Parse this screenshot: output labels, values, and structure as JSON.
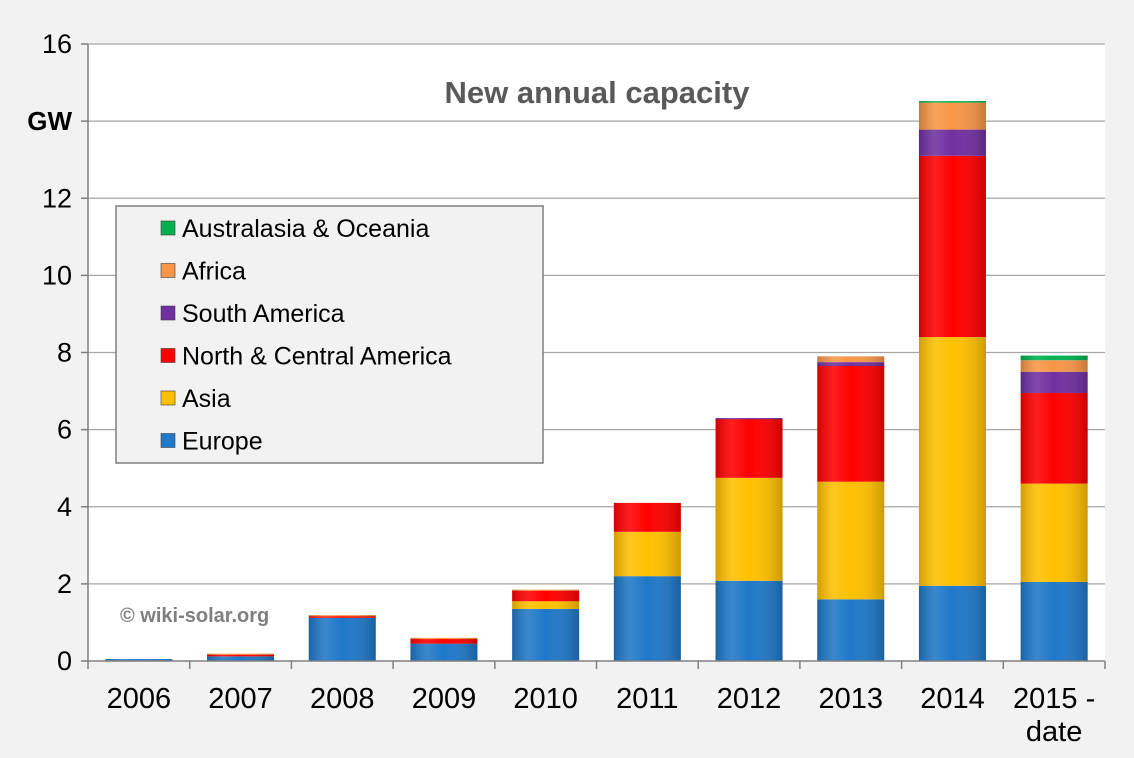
{
  "chart_data": {
    "type": "bar",
    "stacked": true,
    "title": "New annual capacity",
    "unit_label": "GW",
    "watermark": "© wiki-solar.org",
    "categories": [
      [
        "2006"
      ],
      [
        "2007"
      ],
      [
        "2008"
      ],
      [
        "2009"
      ],
      [
        "2010"
      ],
      [
        "2011"
      ],
      [
        "2012"
      ],
      [
        "2013"
      ],
      [
        "2014"
      ],
      [
        "2015 -",
        "date"
      ]
    ],
    "ylim": [
      0,
      16
    ],
    "yticks": [
      0,
      2,
      4,
      6,
      8,
      10,
      12,
      14,
      16
    ],
    "ytick_labels": [
      "0",
      "2",
      "4",
      "6",
      "8",
      "10",
      "12",
      "GW",
      "16"
    ],
    "grid": true,
    "legend_position": "left",
    "series": [
      {
        "name": "Europe",
        "color": "#1f78c8",
        "values": [
          0.05,
          0.12,
          1.12,
          0.45,
          1.35,
          2.2,
          2.08,
          1.6,
          1.95,
          2.05
        ]
      },
      {
        "name": "Asia",
        "color": "#ffc000",
        "values": [
          0.0,
          0.0,
          0.0,
          0.0,
          0.2,
          1.15,
          2.67,
          3.05,
          6.45,
          2.55
        ]
      },
      {
        "name": "North & Central America",
        "color": "#ff0000",
        "values": [
          0.0,
          0.05,
          0.05,
          0.12,
          0.28,
          0.75,
          1.53,
          3.0,
          4.7,
          2.35
        ]
      },
      {
        "name": "South America",
        "color": "#7030a0",
        "values": [
          0.0,
          0.0,
          0.0,
          0.0,
          0.0,
          0.0,
          0.02,
          0.1,
          0.68,
          0.55
        ]
      },
      {
        "name": "Africa",
        "color": "#f79646",
        "values": [
          0.0,
          0.02,
          0.02,
          0.03,
          0.02,
          0.0,
          0.0,
          0.15,
          0.7,
          0.3
        ]
      },
      {
        "name": "Australasia & Oceania",
        "color": "#00b050",
        "values": [
          0.0,
          0.0,
          0.0,
          0.0,
          0.0,
          0.0,
          0.0,
          0.0,
          0.04,
          0.12
        ]
      }
    ],
    "legend_order": [
      "Australasia & Oceania",
      "Africa",
      "South America",
      "North & Central America",
      "Asia",
      "Europe"
    ]
  }
}
